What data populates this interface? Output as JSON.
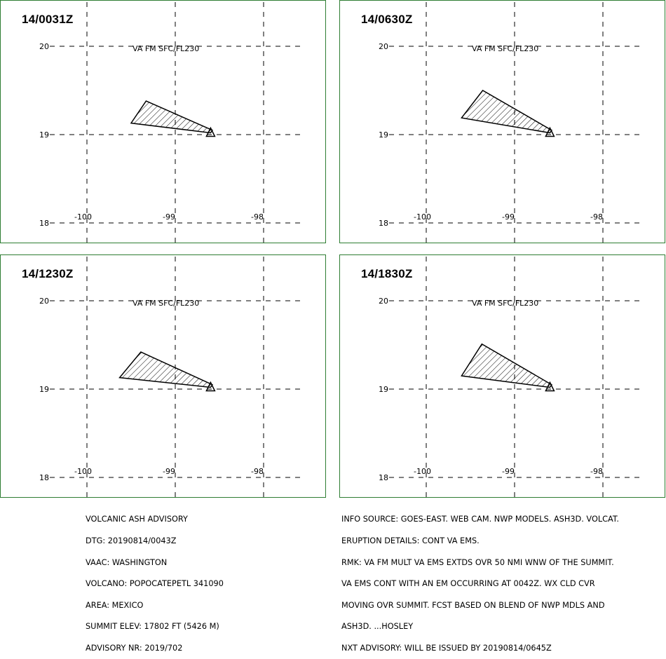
{
  "panels": [
    {
      "time": "14/0031Z",
      "level_label": "VA FM SFC/FL230",
      "polygon": [
        [
          -99.33,
          19.38
        ],
        [
          -99.5,
          19.13
        ],
        [
          -98.6,
          19.02
        ],
        [
          -98.58,
          19.05
        ]
      ]
    },
    {
      "time": "14/0630Z",
      "level_label": "VA FM SFC/FL230",
      "polygon": [
        [
          -99.36,
          19.5
        ],
        [
          -99.6,
          19.19
        ],
        [
          -98.6,
          19.02
        ],
        [
          -98.58,
          19.05
        ]
      ]
    },
    {
      "time": "14/1230Z",
      "level_label": "VA FM SFC/FL230",
      "polygon": [
        [
          -99.39,
          19.42
        ],
        [
          -99.63,
          19.13
        ],
        [
          -98.6,
          19.02
        ],
        [
          -98.58,
          19.05
        ]
      ]
    },
    {
      "time": "14/1830Z",
      "level_label": "VA FM SFC/FL230",
      "polygon": [
        [
          -99.37,
          19.51
        ],
        [
          -99.6,
          19.15
        ],
        [
          -98.6,
          19.02
        ],
        [
          -98.58,
          19.05
        ]
      ]
    }
  ],
  "axes": {
    "lon_ticks": [
      "-100",
      "-99",
      "-98"
    ],
    "lat_ticks": [
      "20",
      "19",
      "18"
    ],
    "lon_values": [
      -100,
      -99,
      -98
    ],
    "lat_values": [
      20,
      19,
      18
    ],
    "lon_range": [
      -100.5,
      -97.5
    ],
    "lat_range": [
      18,
      20
    ],
    "volcano": [
      -98.6,
      19.02
    ],
    "grid": true
  },
  "advisory_left": [
    "VOLCANIC ASH ADVISORY",
    "DTG: 20190814/0043Z",
    "VAAC: WASHINGTON",
    "VOLCANO: POPOCATEPETL 341090",
    "AREA: MEXICO",
    "SUMMIT ELEV: 17802 FT (5426 M)",
    "ADVISORY NR: 2019/702"
  ],
  "advisory_right": [
    "INFO SOURCE: GOES-EAST. WEB CAM. NWP MODELS. ASH3D. VOLCAT.",
    "ERUPTION DETAILS: CONT VA EMS.",
    "RMK: VA FM MULT VA EMS EXTDS OVR 50 NMI WNW OF THE SUMMIT.",
    "VA EMS CONT WITH AN EM OCCURRING AT 0042Z. WX CLD CVR",
    "MOVING OVR SUMMIT. FCST BASED ON BLEND OF NWP MDLS AND",
    "ASH3D. ...HOSLEY",
    "NXT ADVISORY: WILL BE ISSUED BY 20190814/0645Z"
  ],
  "colors": {
    "panel_border": "#2e7d32",
    "lines": "#000000"
  }
}
